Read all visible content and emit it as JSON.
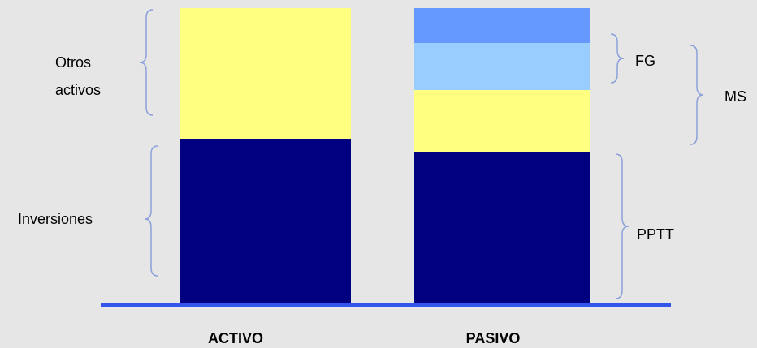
{
  "left_labels": {
    "otros_activos": [
      "Otros",
      "activos"
    ],
    "inversiones": "Inversiones"
  },
  "right_labels": {
    "fg": "FG",
    "ms": "MS",
    "pptt": "PPTT"
  },
  "columns": [
    "ACTIVO",
    "PASIVO"
  ]
}
